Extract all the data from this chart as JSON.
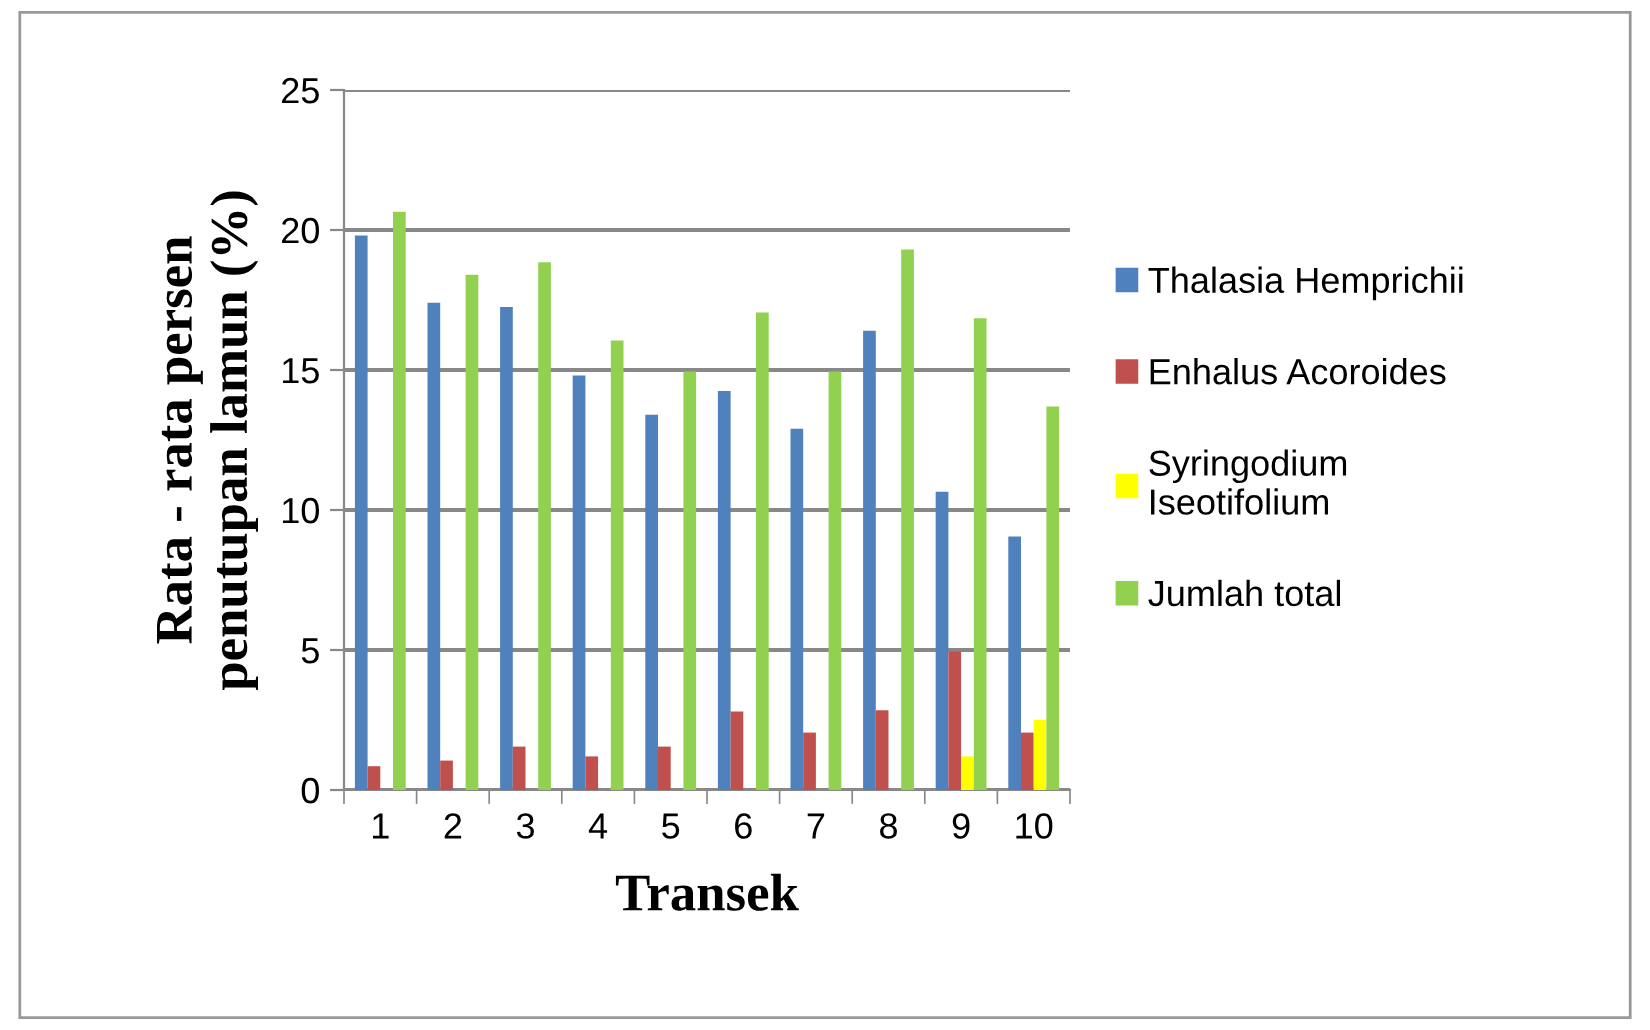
{
  "chart_data": {
    "type": "bar",
    "xlabel": "Transek",
    "ylabel": "Rata - rata persen\npenutupan lamun (%)",
    "categories": [
      "1",
      "2",
      "3",
      "4",
      "5",
      "6",
      "7",
      "8",
      "9",
      "10"
    ],
    "series": [
      {
        "name": "Thalasia Hemprichii",
        "color": "#4f81bd",
        "values": [
          19.8,
          17.4,
          17.25,
          14.8,
          13.4,
          14.25,
          12.9,
          16.4,
          10.65,
          9.05
        ]
      },
      {
        "name": "Enhalus Acoroides",
        "color": "#c0504d",
        "values": [
          0.85,
          1.05,
          1.55,
          1.2,
          1.55,
          2.8,
          2.05,
          2.85,
          4.95,
          2.05
        ]
      },
      {
        "name": "Syringodium\nIseotifolium",
        "color": "#ffff00",
        "values": [
          0,
          0,
          0,
          0,
          0,
          0,
          0,
          0,
          1.2,
          2.5
        ]
      },
      {
        "name": "Jumlah total",
        "color": "#92d050",
        "values": [
          20.65,
          18.4,
          18.85,
          16.05,
          14.95,
          17.05,
          14.95,
          19.3,
          16.85,
          13.7
        ]
      }
    ],
    "ylim": [
      0,
      25
    ],
    "yticks": [
      0,
      5,
      10,
      15,
      20,
      25
    ],
    "grid": "y",
    "legend": "right"
  }
}
